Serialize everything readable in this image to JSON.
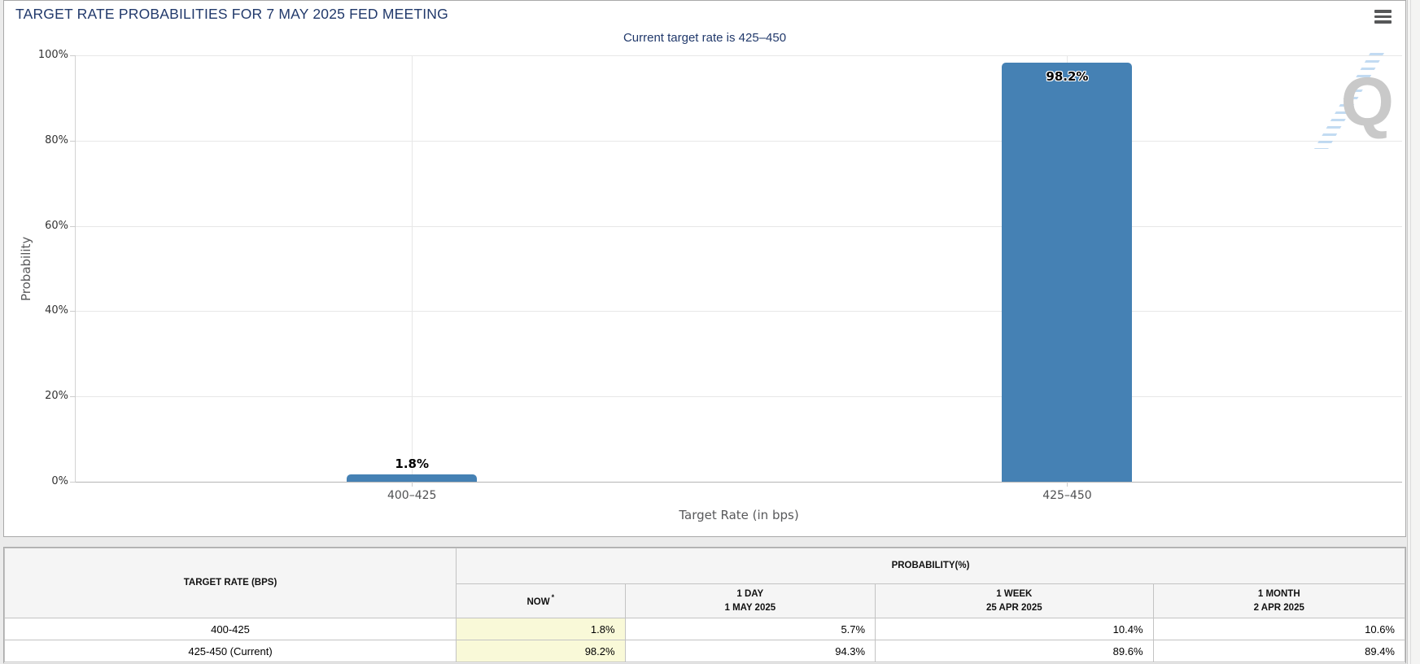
{
  "panel": {
    "title": "TARGET RATE PROBABILITIES FOR 7 MAY 2025 FED MEETING"
  },
  "chart_data": {
    "type": "bar",
    "title": "Current target rate is 425–450",
    "categories": [
      "400–425",
      "425–450"
    ],
    "values": [
      1.8,
      98.2
    ],
    "data_labels": [
      "1.8%",
      "98.2%"
    ],
    "xlabel": "Target Rate (in bps)",
    "ylabel": "Probability",
    "ylim": [
      0,
      100
    ],
    "ytick_labels": [
      "0%",
      "20%",
      "40%",
      "60%",
      "80%",
      "100%"
    ],
    "grid": true,
    "legend_position": "none",
    "bar_color": "#4581b4"
  },
  "watermark": {
    "letter": "Q"
  },
  "table": {
    "rate_col_header": "TARGET RATE (BPS)",
    "prob_group_header": "PROBABILITY(%)",
    "period_headers": [
      {
        "line1": "NOW",
        "sup": "*",
        "line2": ""
      },
      {
        "line1": "1 DAY",
        "sup": "",
        "line2": "1 MAY 2025"
      },
      {
        "line1": "1 WEEK",
        "sup": "",
        "line2": "25 APR 2025"
      },
      {
        "line1": "1 MONTH",
        "sup": "",
        "line2": "2 APR 2025"
      }
    ],
    "rows": [
      {
        "label": "400-425",
        "values": [
          "1.8%",
          "5.7%",
          "10.4%",
          "10.6%"
        ]
      },
      {
        "label": "425-450 (Current)",
        "values": [
          "98.2%",
          "94.3%",
          "89.6%",
          "89.4%"
        ]
      }
    ],
    "highlight_color": "#f9f9d8"
  },
  "colors": {
    "title_navy": "#21396b",
    "bar_blue": "#4581b4",
    "axis_text": "#58595b",
    "now_column_yellow": "#f9f9d8"
  }
}
